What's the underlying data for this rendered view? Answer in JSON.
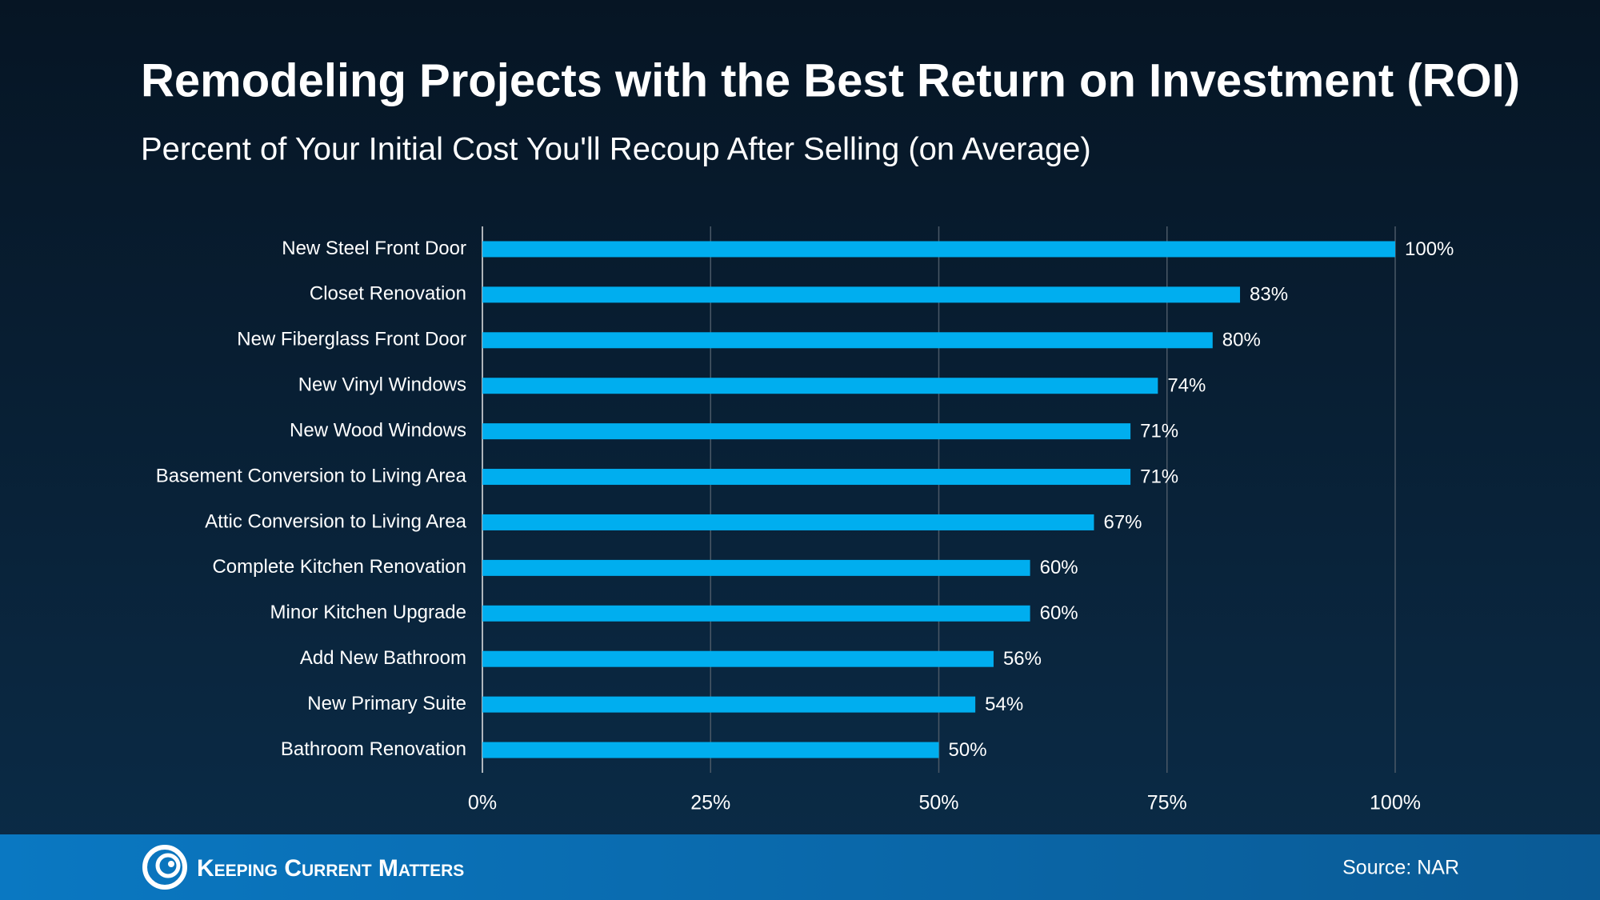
{
  "chart_data": {
    "type": "bar",
    "orientation": "horizontal",
    "title": "Remodeling Projects with the Best Return on Investment (ROI)",
    "subtitle": "Percent of Your Initial Cost You'll Recoup After Selling (on Average)",
    "categories": [
      "New Steel Front Door",
      "Closet Renovation",
      "New Fiberglass Front Door",
      "New Vinyl Windows",
      "New Wood Windows",
      "Basement Conversion to Living Area",
      "Attic Conversion to Living Area",
      "Complete Kitchen Renovation",
      "Minor Kitchen Upgrade",
      "Add New Bathroom",
      "New Primary Suite",
      "Bathroom Renovation"
    ],
    "values": [
      100,
      83,
      80,
      74,
      71,
      71,
      67,
      60,
      60,
      56,
      54,
      50
    ],
    "value_labels": [
      "100%",
      "83%",
      "80%",
      "74%",
      "71%",
      "71%",
      "67%",
      "60%",
      "60%",
      "56%",
      "54%",
      "50%"
    ],
    "color": "#00aeef",
    "xlim": [
      0,
      100
    ],
    "xticks": [
      {
        "value": 0,
        "label": "0%"
      },
      {
        "value": 25,
        "label": "25%"
      },
      {
        "value": 50,
        "label": "50%"
      },
      {
        "value": 75,
        "label": "75%"
      },
      {
        "value": 100,
        "label": "100%"
      }
    ],
    "grid": true,
    "source": "Source: NAR"
  },
  "footer": {
    "brand": "Keeping Current Matters"
  }
}
